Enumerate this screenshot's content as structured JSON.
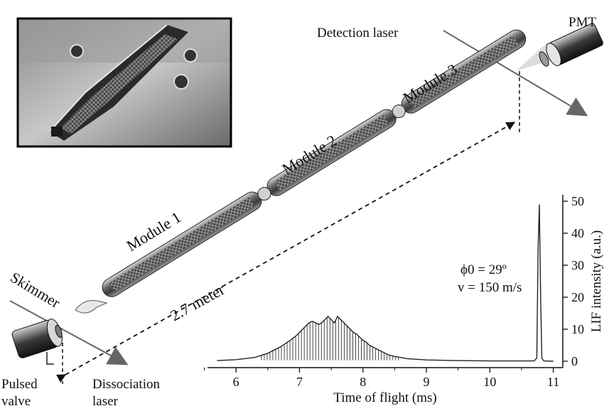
{
  "labels": {
    "detection_laser": "Detection laser",
    "pmt": "PMT",
    "module1": "Module 1",
    "module2": "Module 2",
    "module3": "Module 3",
    "skimmer": "Skimmer",
    "distance": "2.7 meter",
    "pulsed_valve_line1": "Pulsed",
    "pulsed_valve_line2": "valve",
    "dissociation_line1": "Dissociation",
    "dissociation_line2": "laser"
  },
  "annotation": {
    "phi_line": "ϕ0 = 29º",
    "v_line": "v = 150 m/s"
  },
  "chart_data": {
    "type": "line",
    "xlabel": "Time of flight (ms)",
    "ylabel": "LIF intensity (a.u.)",
    "xlim": [
      5.55,
      11.15
    ],
    "ylim": [
      -2,
      52
    ],
    "x_ticks": [
      6,
      7,
      8,
      9,
      10,
      11
    ],
    "y_ticks": [
      0,
      10,
      20,
      30,
      40,
      50
    ],
    "series": [
      {
        "description": "broad oscillating packet train",
        "x": [
          5.7,
          6.0,
          6.3,
          6.5,
          6.7,
          6.85,
          6.95,
          7.0,
          7.05,
          7.1,
          7.15,
          7.2,
          7.25,
          7.3,
          7.35,
          7.4,
          7.45,
          7.5,
          7.55,
          7.6,
          7.65,
          7.7,
          7.75,
          7.8,
          7.85,
          7.9,
          7.95,
          8.0,
          8.05,
          8.1,
          8.15,
          8.2,
          8.3,
          8.4,
          8.5,
          8.7,
          9.0,
          9.5,
          10.0,
          10.5,
          10.7
        ],
        "y": [
          0.2,
          0.5,
          1.2,
          2.5,
          4.5,
          6.5,
          8,
          9,
          10,
          11,
          12,
          12.5,
          12,
          11.5,
          12,
          13,
          14,
          13,
          12,
          14,
          13,
          12,
          11,
          10,
          9,
          8.5,
          7.5,
          6.5,
          6,
          5,
          4.5,
          4,
          3,
          2,
          1.5,
          0.8,
          0.4,
          0.2,
          0.1,
          0.1,
          0.1
        ]
      },
      {
        "description": "narrow bunched peak",
        "x": [
          10.7,
          10.74,
          10.76,
          10.78,
          10.8,
          10.82,
          10.85,
          11.0
        ],
        "y": [
          0.1,
          1,
          35,
          49,
          20,
          1,
          0.1,
          0
        ]
      }
    ]
  }
}
